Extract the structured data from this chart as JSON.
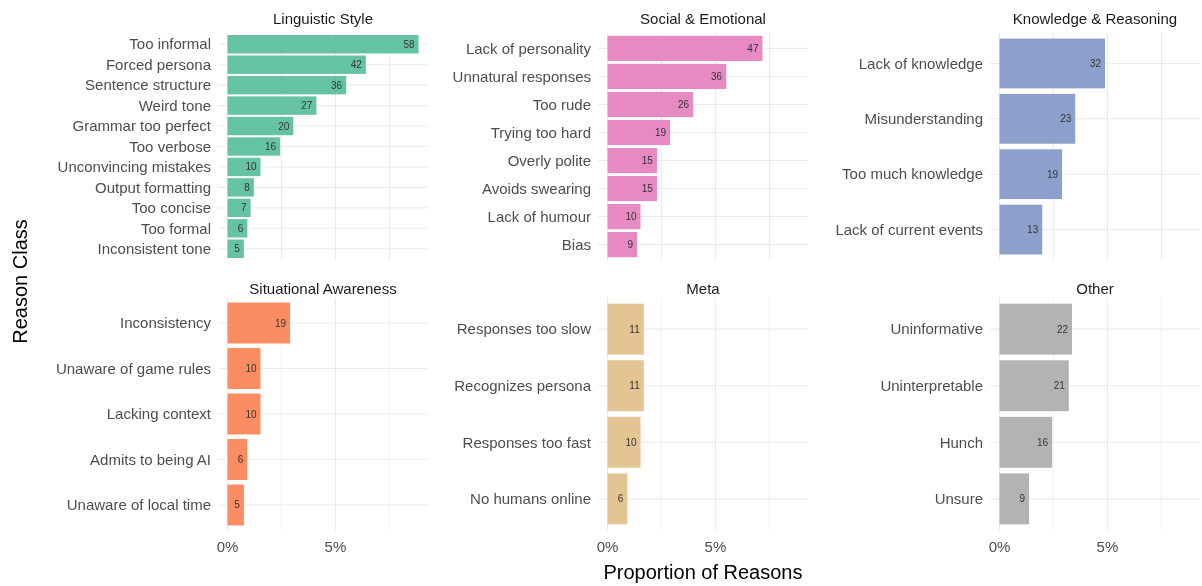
{
  "chart_data": [
    {
      "type": "bar",
      "orientation": "horizontal",
      "title": "Linguistic Style",
      "ylabel": "Reason Class",
      "categories": [
        "Too informal",
        "Forced persona",
        "Sentence structure",
        "Weird tone",
        "Grammar too perfect",
        "Too verbose",
        "Unconvincing mistakes",
        "Output formatting",
        "Too concise",
        "Too formal",
        "Inconsistent tone"
      ],
      "values": [
        8.85,
        6.41,
        5.5,
        4.12,
        3.05,
        2.44,
        1.53,
        1.22,
        1.07,
        0.92,
        0.76
      ],
      "annotations": [
        {
          "text": "58",
          "x": 8.85,
          "y": "Too informal"
        },
        {
          "text": "42",
          "x": 6.41,
          "y": "Forced persona"
        },
        {
          "text": "36",
          "x": 5.5,
          "y": "Sentence structure"
        },
        {
          "text": "27",
          "x": 4.12,
          "y": "Weird tone"
        },
        {
          "text": "20",
          "x": 3.05,
          "y": "Grammar too perfect"
        },
        {
          "text": "16",
          "x": 2.44,
          "y": "Too verbose"
        },
        {
          "text": "10",
          "x": 1.53,
          "y": "Unconvincing mistakes"
        },
        {
          "text": "8",
          "x": 1.22,
          "y": "Output formatting"
        },
        {
          "text": "7",
          "x": 1.07,
          "y": "Too concise"
        },
        {
          "text": "6",
          "x": 0.92,
          "y": "Too formal"
        },
        {
          "text": "5",
          "x": 0.76,
          "y": "Inconsistent tone"
        }
      ],
      "color": "#66c2a5",
      "xlim": [
        -0.44,
        9.29
      ],
      "xticks": [
        0,
        2.5,
        5,
        7.5
      ],
      "tick_labels": "y",
      "grid": true
    },
    {
      "type": "bar",
      "orientation": "horizontal",
      "title": "Social & Emotional",
      "categories": [
        "Lack of personality",
        "Unnatural responses",
        "Too rude",
        "Trying too hard",
        "Overly polite",
        "Avoids swearing",
        "Lack of humour",
        "Bias"
      ],
      "values": [
        7.18,
        5.5,
        3.97,
        2.9,
        2.29,
        2.29,
        1.53,
        1.37
      ],
      "annotations": [
        {
          "text": "47",
          "x": 7.18,
          "y": "Lack of personality"
        },
        {
          "text": "36",
          "x": 5.5,
          "y": "Unnatural responses"
        },
        {
          "text": "26",
          "x": 3.97,
          "y": "Too rude"
        },
        {
          "text": "19",
          "x": 2.9,
          "y": "Trying too hard"
        },
        {
          "text": "15",
          "x": 2.29,
          "y": "Overly polite"
        },
        {
          "text": "15",
          "x": 2.29,
          "y": "Avoids swearing"
        },
        {
          "text": "10",
          "x": 1.53,
          "y": "Lack of humour"
        },
        {
          "text": "9",
          "x": 1.37,
          "y": "Bias"
        }
      ],
      "color": "#e78ac3",
      "xlim": [
        -0.44,
        9.29
      ],
      "xticks": [
        0,
        2.5,
        5,
        7.5
      ],
      "tick_labels": "y",
      "grid": true
    },
    {
      "type": "bar",
      "orientation": "horizontal",
      "title": "Knowledge & Reasoning",
      "categories": [
        "Lack of knowledge",
        "Misunderstanding",
        "Too much knowledge",
        "Lack of current events"
      ],
      "values": [
        4.89,
        3.51,
        2.9,
        1.98
      ],
      "annotations": [
        {
          "text": "32",
          "x": 4.89,
          "y": "Lack of knowledge"
        },
        {
          "text": "23",
          "x": 3.51,
          "y": "Misunderstanding"
        },
        {
          "text": "19",
          "x": 2.9,
          "y": "Too much knowledge"
        },
        {
          "text": "13",
          "x": 1.98,
          "y": "Lack of current events"
        }
      ],
      "color": "#8da0cb",
      "xlim": [
        -0.44,
        9.29
      ],
      "xticks": [
        0,
        2.5,
        5,
        7.5
      ],
      "tick_labels": "y",
      "grid": true
    },
    {
      "type": "bar",
      "orientation": "horizontal",
      "title": "Situational Awareness",
      "categories": [
        "Inconsistency",
        "Unaware of game rules",
        "Lacking context",
        "Admits to being AI",
        "Unaware of local time"
      ],
      "values": [
        2.9,
        1.53,
        1.53,
        0.92,
        0.76
      ],
      "annotations": [
        {
          "text": "19",
          "x": 2.9,
          "y": "Inconsistency"
        },
        {
          "text": "10",
          "x": 1.53,
          "y": "Unaware of game rules"
        },
        {
          "text": "10",
          "x": 1.53,
          "y": "Lacking context"
        },
        {
          "text": "6",
          "x": 0.92,
          "y": "Admits to being AI"
        },
        {
          "text": "5",
          "x": 0.76,
          "y": "Unaware of local time"
        }
      ],
      "color": "#fc8d62",
      "xlim": [
        -0.44,
        9.29
      ],
      "xticks": [
        {
          "value": 0,
          "label": "0%"
        },
        {
          "value": 2.5,
          "label": null
        },
        {
          "value": 5,
          "label": "5%"
        },
        {
          "value": 7.5,
          "label": null
        }
      ],
      "grid": true
    },
    {
      "type": "bar",
      "orientation": "horizontal",
      "title": "Meta",
      "xlabel": "Proportion of Reasons",
      "categories": [
        "Responses too slow",
        "Recognizes persona",
        "Responses too fast",
        "No humans online"
      ],
      "values": [
        1.68,
        1.68,
        1.53,
        0.92
      ],
      "annotations": [
        {
          "text": "11",
          "x": 1.68,
          "y": "Responses too slow"
        },
        {
          "text": "11",
          "x": 1.68,
          "y": "Recognizes persona"
        },
        {
          "text": "10",
          "x": 1.53,
          "y": "Responses too fast"
        },
        {
          "text": "6",
          "x": 0.92,
          "y": "No humans online"
        }
      ],
      "color": "#e5c494",
      "xlim": [
        -0.44,
        9.29
      ],
      "xticks": [
        {
          "value": 0,
          "label": "0%"
        },
        {
          "value": 2.5,
          "label": null
        },
        {
          "value": 5,
          "label": "5%"
        },
        {
          "value": 7.5,
          "label": null
        }
      ],
      "grid": true
    },
    {
      "type": "bar",
      "orientation": "horizontal",
      "title": "Other",
      "categories": [
        "Uninformative",
        "Uninterpretable",
        "Hunch",
        "Unsure"
      ],
      "values": [
        3.36,
        3.21,
        2.44,
        1.37
      ],
      "annotations": [
        {
          "text": "22",
          "x": 3.36,
          "y": "Uninformative"
        },
        {
          "text": "21",
          "x": 3.21,
          "y": "Uninterpretable"
        },
        {
          "text": "16",
          "x": 2.44,
          "y": "Hunch"
        },
        {
          "text": "9",
          "x": 1.37,
          "y": "Unsure"
        }
      ],
      "color": "#b3b3b3",
      "xlim": [
        -0.44,
        9.29
      ],
      "xticks": [
        {
          "value": 0,
          "label": "0%"
        },
        {
          "value": 2.5,
          "label": null
        },
        {
          "value": 5,
          "label": "5%"
        },
        {
          "value": 7.5,
          "label": null
        }
      ],
      "grid": true
    }
  ]
}
